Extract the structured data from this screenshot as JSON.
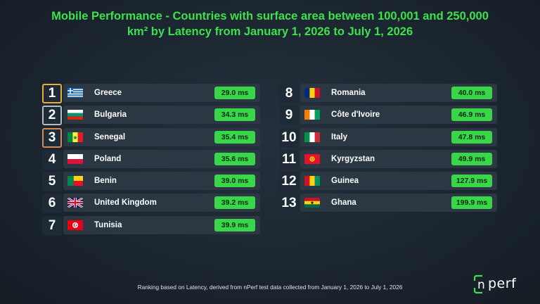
{
  "title": {
    "line1": "Mobile Performance - Countries with surface area between 100,001 and 250,000",
    "line2": "km² by Latency from January 1, 2026 to July 1, 2026"
  },
  "chart_data": {
    "type": "table",
    "metric": "Latency",
    "unit": "ms",
    "rows": [
      {
        "rank": "1",
        "country": "Greece",
        "value": 29.0,
        "label": "29.0 ms",
        "flag": "greece-flag-icon"
      },
      {
        "rank": "2",
        "country": "Bulgaria",
        "value": 34.3,
        "label": "34.3 ms",
        "flag": "bulgaria-flag-icon"
      },
      {
        "rank": "3",
        "country": "Senegal",
        "value": 35.4,
        "label": "35.4 ms",
        "flag": "senegal-flag-icon"
      },
      {
        "rank": "4",
        "country": "Poland",
        "value": 35.6,
        "label": "35.6 ms",
        "flag": "poland-flag-icon"
      },
      {
        "rank": "5",
        "country": "Benin",
        "value": 39.0,
        "label": "39.0 ms",
        "flag": "benin-flag-icon"
      },
      {
        "rank": "6",
        "country": "United Kingdom",
        "value": 39.2,
        "label": "39.2 ms",
        "flag": "uk-flag-icon"
      },
      {
        "rank": "7",
        "country": "Tunisia",
        "value": 39.9,
        "label": "39.9 ms",
        "flag": "tunisia-flag-icon"
      },
      {
        "rank": "8",
        "country": "Romania",
        "value": 40.0,
        "label": "40.0 ms",
        "flag": "romania-flag-icon"
      },
      {
        "rank": "9",
        "country": "Côte d'Ivoire",
        "value": 46.9,
        "label": "46.9 ms",
        "flag": "cote-divoire-flag-icon"
      },
      {
        "rank": "10",
        "country": "Italy",
        "value": 47.8,
        "label": "47.8 ms",
        "flag": "italy-flag-icon"
      },
      {
        "rank": "11",
        "country": "Kyrgyzstan",
        "value": 49.9,
        "label": "49.9 ms",
        "flag": "kyrgyzstan-flag-icon"
      },
      {
        "rank": "12",
        "country": "Guinea",
        "value": 127.9,
        "label": "127.9 ms",
        "flag": "guinea-flag-icon"
      },
      {
        "rank": "13",
        "country": "Ghana",
        "value": 199.9,
        "label": "199.9 ms",
        "flag": "ghana-flag-icon"
      }
    ]
  },
  "footer": "Ranking based on Latency, derived from nPerf test data collected from January 1, 2026 to July 1, 2026",
  "logo": {
    "text": "perf",
    "icon": "nperf-logo-icon"
  },
  "colors": {
    "accent": "#3ee04c",
    "value_badge": "#3ad64a",
    "gold": "#e4b03a",
    "silver": "#b8bcc2",
    "bronze": "#d28b5b",
    "background": "#1b252f"
  }
}
